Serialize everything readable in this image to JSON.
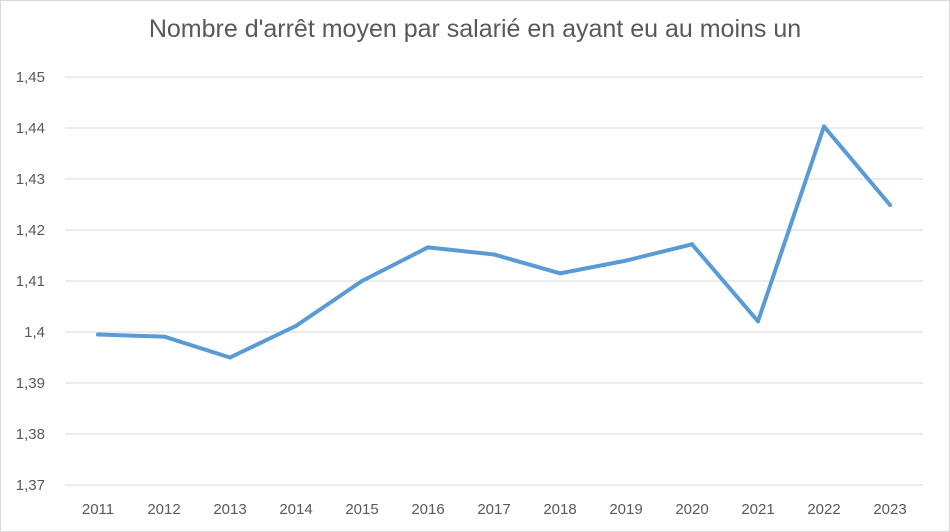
{
  "chart_data": {
    "type": "line",
    "title": "Nombre d'arrêt moyen par salarié en ayant eu au moins un",
    "xlabel": "",
    "ylabel": "",
    "categories": [
      "2011",
      "2012",
      "2013",
      "2014",
      "2015",
      "2016",
      "2017",
      "2018",
      "2019",
      "2020",
      "2021",
      "2022",
      "2023"
    ],
    "series": [
      {
        "values": [
          1.3995,
          1.3991,
          1.395,
          1.4012,
          1.41,
          1.4166,
          1.4152,
          1.4115,
          1.414,
          1.4172,
          1.4021,
          1.4403,
          1.4249
        ]
      }
    ],
    "ylim": [
      1.37,
      1.45
    ],
    "yticks": [
      "1,37",
      "1,38",
      "1,39",
      "1,4",
      "1,41",
      "1,42",
      "1,43",
      "1,44",
      "1,45"
    ],
    "grid": true,
    "legend": "none",
    "line_color": "#5b9bd5",
    "grid_color": "#d9d9d9"
  }
}
